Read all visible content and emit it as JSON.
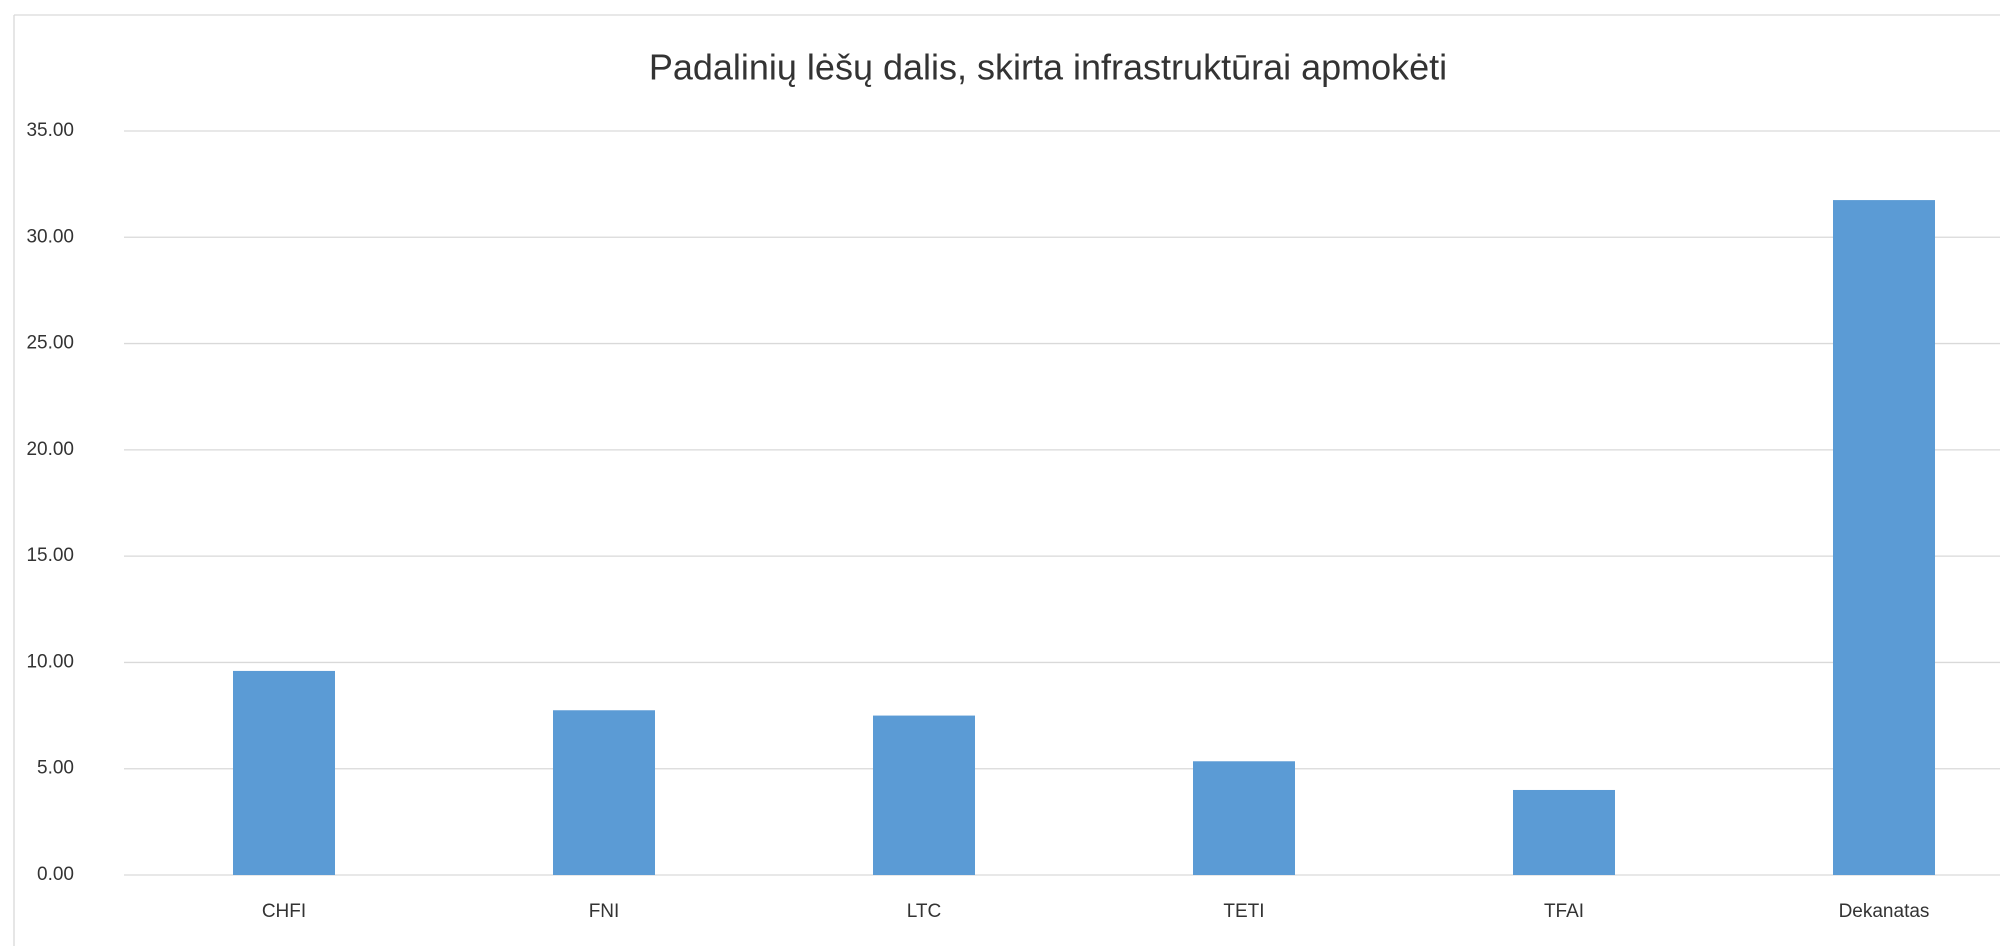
{
  "chart_data": {
    "type": "bar",
    "title": "Padalinių lėšų dalis, skirta infrastruktūrai apmokėti",
    "categories": [
      "CHFI",
      "FNI",
      "LTC",
      "TETI",
      "TFAI",
      "Dekanatas"
    ],
    "values": [
      9.6,
      7.75,
      7.5,
      5.35,
      4.0,
      31.75
    ],
    "color": "#5b9bd5",
    "ylim": [
      0,
      35
    ],
    "yticks": [
      {
        "value": 0,
        "label": "0.00"
      },
      {
        "value": 5,
        "label": "5.00"
      },
      {
        "value": 10,
        "label": "10.00"
      },
      {
        "value": 15,
        "label": "15.00"
      },
      {
        "value": 20,
        "label": "20.00"
      },
      {
        "value": 25,
        "label": "25.00"
      },
      {
        "value": 30,
        "label": "30.00"
      },
      {
        "value": 35,
        "label": "35.00"
      }
    ],
    "grid": true
  }
}
